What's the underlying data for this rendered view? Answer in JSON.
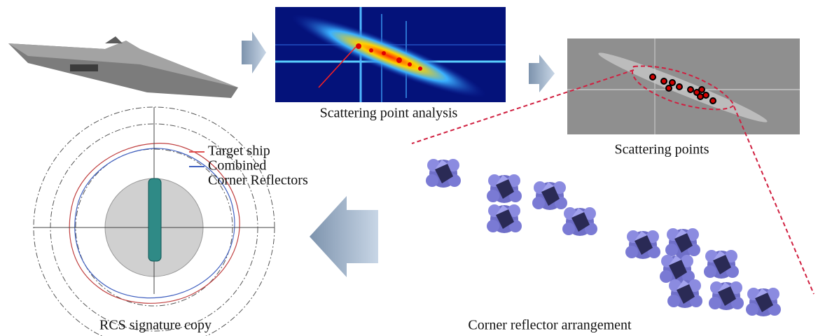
{
  "steps": [
    {
      "caption": "Scattering point analysis"
    },
    {
      "caption": "Scattering points"
    },
    {
      "caption": "Corner reflector arrangement"
    },
    {
      "caption": "RCS signature copy"
    }
  ],
  "legend": {
    "lines": [
      "Target ship",
      "Combined",
      "Corner Reflectors"
    ]
  }
}
